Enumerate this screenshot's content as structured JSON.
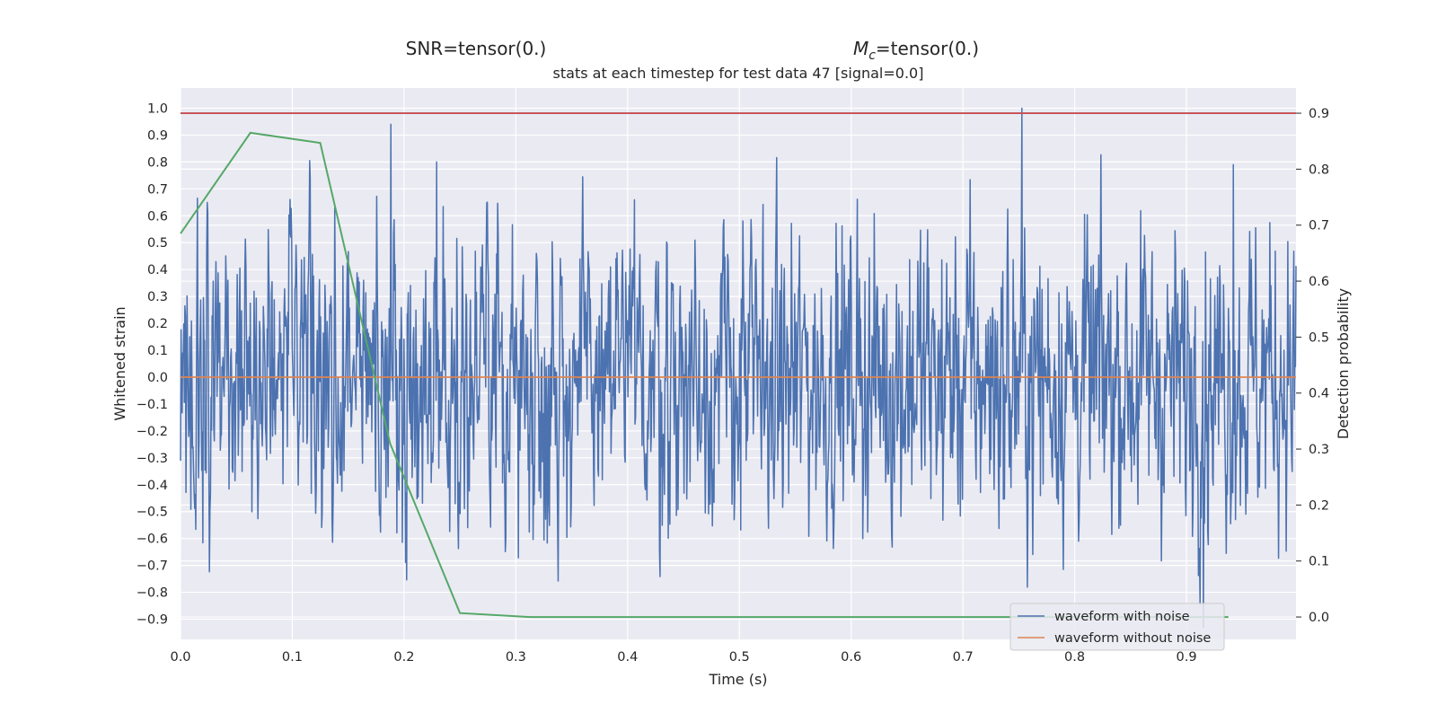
{
  "chart_data": {
    "type": "line",
    "suptitle_left": "SNR=tensor(0.)",
    "suptitle_right_symbol": "M",
    "suptitle_right_subscript": "c",
    "suptitle_right_rest": "=tensor(0.)",
    "title": "stats at each timestep for test data 47 [signal=0.0]",
    "xlabel": "Time (s)",
    "ylabel_left": "Whitened strain",
    "ylabel_right": "Detection probability",
    "xlim": [
      0.0,
      0.998
    ],
    "ylim_left": [
      -0.975,
      1.075
    ],
    "ylim_right": [
      -0.04,
      0.945
    ],
    "x_ticks": [
      "0.0",
      "0.1",
      "0.2",
      "0.3",
      "0.4",
      "0.5",
      "0.6",
      "0.7",
      "0.8",
      "0.9"
    ],
    "y_ticks_left": [
      "1.0",
      "0.9",
      "0.8",
      "0.7",
      "0.6",
      "0.5",
      "0.4",
      "0.3",
      "0.2",
      "0.1",
      "0.0",
      "−0.1",
      "−0.2",
      "−0.3",
      "−0.4",
      "−0.5",
      "−0.6",
      "−0.7",
      "−0.8",
      "−0.9"
    ],
    "y_ticks_right": [
      "0.9",
      "0.8",
      "0.7",
      "0.6",
      "0.5",
      "0.4",
      "0.3",
      "0.2",
      "0.1",
      "0.0"
    ],
    "grid": true,
    "legend_position": "lower-right",
    "colors": {
      "background": "#eaeaf2",
      "grid": "#ffffff",
      "noisy": "#4c72b0",
      "clean": "#dd8452",
      "probability": "#55a868",
      "threshold": "#c44e52"
    },
    "series": [
      {
        "name": "waveform with noise",
        "axis": "left",
        "sample_count": 2048,
        "range": [
          -0.93,
          1.0
        ],
        "notable_peaks": [
          {
            "x": 0.188,
            "y": 0.94
          },
          {
            "x": 0.229,
            "y": 0.8
          },
          {
            "x": 0.753,
            "y": 1.0
          },
          {
            "x": 0.915,
            "y": -0.93
          },
          {
            "x": 0.942,
            "y": 0.79
          }
        ]
      },
      {
        "name": "waveform without noise",
        "axis": "left",
        "x": [
          0.0,
          0.998
        ],
        "y": [
          0.0,
          0.0
        ]
      },
      {
        "axis": "right",
        "x": [
          0.0,
          0.0625,
          0.125,
          0.1875,
          0.25,
          0.3125,
          0.375,
          0.4375,
          0.5,
          0.5625,
          0.625,
          0.6875,
          0.75,
          0.8125,
          0.875,
          0.9375
        ],
        "y": [
          0.685,
          0.865,
          0.847,
          0.31,
          0.007,
          0.0,
          0.0,
          0.0,
          0.0,
          0.0,
          0.0,
          0.0,
          0.0,
          0.0,
          0.0,
          0.0
        ]
      },
      {
        "axis": "right",
        "x": [
          0.0,
          0.998
        ],
        "y": [
          0.9,
          0.9
        ]
      }
    ]
  }
}
